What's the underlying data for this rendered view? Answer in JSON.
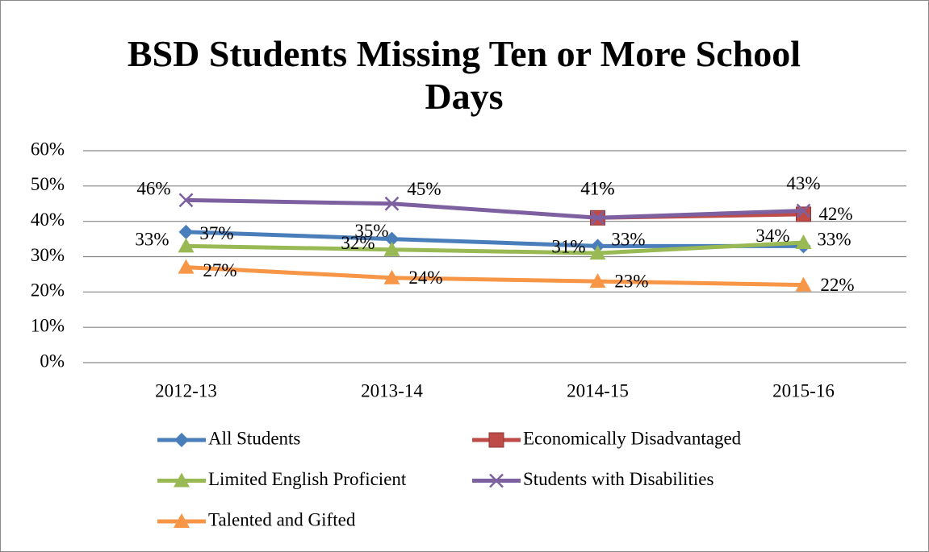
{
  "chart_data": {
    "type": "line",
    "title": "BSD Students Missing Ten or More School Days",
    "categories": [
      "2012-13",
      "2013-14",
      "2014-15",
      "2015-16"
    ],
    "ylim": [
      0,
      60
    ],
    "yticks": [
      {
        "value": 0,
        "label": "0%"
      },
      {
        "value": 10,
        "label": "10%"
      },
      {
        "value": 20,
        "label": "20%"
      },
      {
        "value": 30,
        "label": "30%"
      },
      {
        "value": 40,
        "label": "40%"
      },
      {
        "value": 50,
        "label": "50%"
      },
      {
        "value": 60,
        "label": "60%"
      }
    ],
    "grid": true,
    "legend": "bottom",
    "series": [
      {
        "name": "All Students",
        "color": "#4a7ebb",
        "marker": "diamond",
        "values": [
          37,
          35,
          33,
          33
        ],
        "value_labels": [
          "37%",
          "35%",
          "33%",
          "33%"
        ]
      },
      {
        "name": "Economically Disadvantaged",
        "color": "#be4b48",
        "marker": "square",
        "values": [
          null,
          null,
          41,
          42
        ],
        "value_labels": [
          null,
          null,
          "41%",
          "42%"
        ]
      },
      {
        "name": "Limited English Proficient",
        "color": "#98b954",
        "marker": "triangle",
        "values": [
          33,
          32,
          31,
          34
        ],
        "value_labels": [
          "33%",
          "32%",
          "31%",
          "34%"
        ]
      },
      {
        "name": "Students with Disabilities",
        "color": "#7d60a0",
        "marker": "x",
        "values": [
          46,
          45,
          41,
          43
        ],
        "value_labels": [
          "46%",
          "45%",
          "41%",
          "43%"
        ]
      },
      {
        "name": "Talented and Gifted",
        "color": "#f79646",
        "marker": "triangle",
        "values": [
          27,
          24,
          23,
          22
        ],
        "value_labels": [
          "27%",
          "24%",
          "23%",
          "22%"
        ]
      }
    ]
  }
}
